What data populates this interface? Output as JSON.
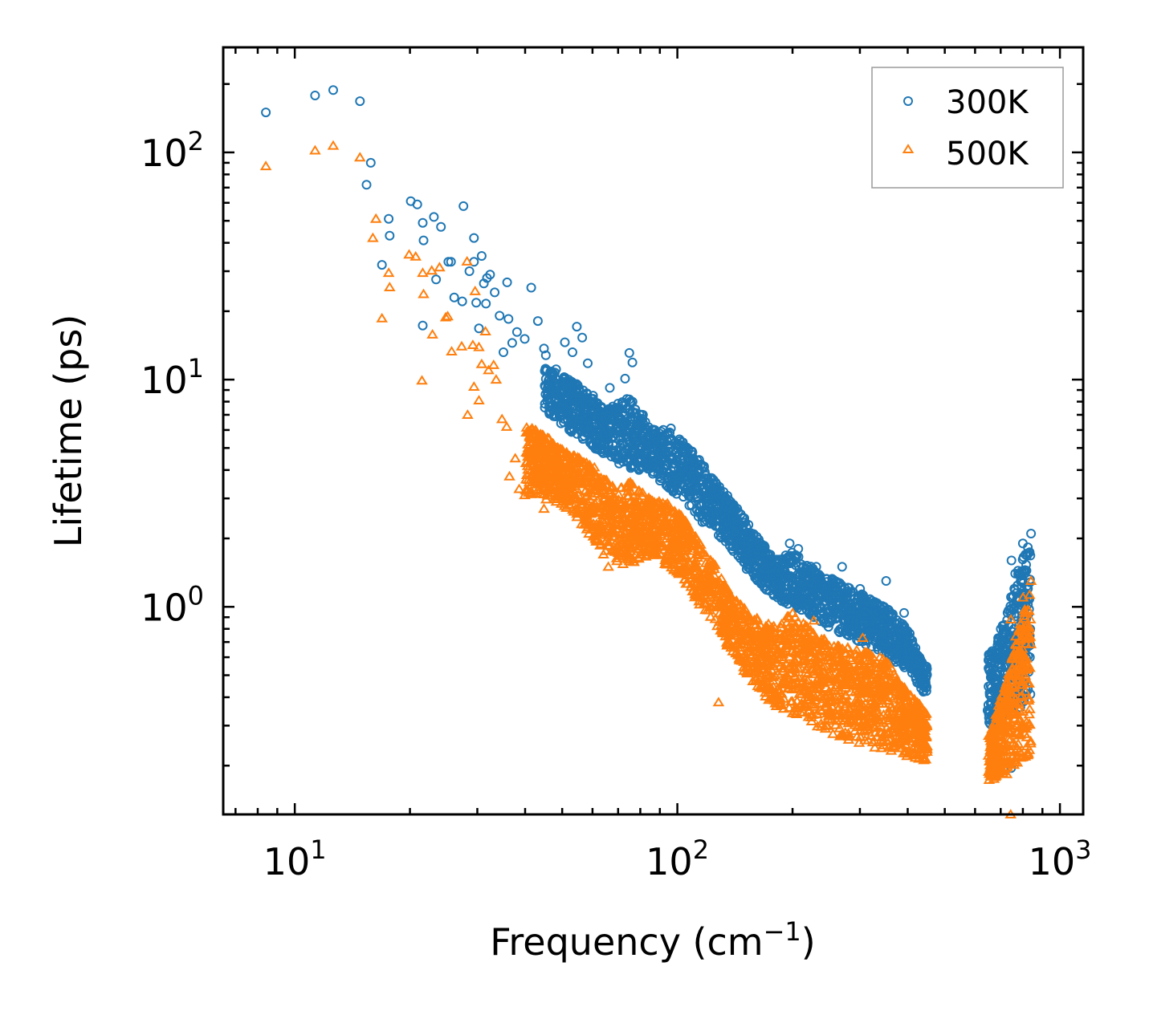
{
  "chart_data": {
    "type": "scatter",
    "xscale": "log",
    "yscale": "log",
    "xlim": [
      6.5,
      1150
    ],
    "ylim": [
      0.122,
      290
    ],
    "xlabel": "Frequency (cm",
    "xlabel_superscript": "−1",
    "xlabel_suffix": ")",
    "ylabel": "Lifetime (ps)",
    "xticks": [
      {
        "value": 10,
        "base": "10",
        "exp": "1"
      },
      {
        "value": 100,
        "base": "10",
        "exp": "2"
      },
      {
        "value": 1000,
        "base": "10",
        "exp": "3"
      }
    ],
    "yticks": [
      {
        "value": 1,
        "base": "10",
        "exp": "0"
      },
      {
        "value": 10,
        "base": "10",
        "exp": "1"
      },
      {
        "value": 100,
        "base": "10",
        "exp": "2"
      }
    ],
    "legend_position": "top-right",
    "series": [
      {
        "name": "300K",
        "marker": "circle",
        "color": "#1f77b4",
        "points": [
          [
            8.4,
            150
          ],
          [
            11.3,
            178
          ],
          [
            12.6,
            188
          ],
          [
            14.8,
            168
          ],
          [
            15.8,
            90
          ],
          [
            15.4,
            72
          ],
          [
            17.6,
            51
          ],
          [
            17.7,
            43
          ],
          [
            16.9,
            32
          ],
          [
            20.1,
            61
          ],
          [
            20.9,
            59
          ],
          [
            21.6,
            49
          ],
          [
            21.7,
            41
          ],
          [
            21.6,
            17.3
          ],
          [
            23.1,
            52
          ],
          [
            24.1,
            47
          ],
          [
            23.4,
            27.6
          ],
          [
            25.2,
            33
          ],
          [
            25.6,
            33
          ],
          [
            27.6,
            58
          ],
          [
            26.1,
            23
          ],
          [
            27.4,
            22.1
          ],
          [
            28.6,
            30
          ],
          [
            29.4,
            42
          ],
          [
            29.4,
            33
          ],
          [
            30.8,
            35
          ],
          [
            31.2,
            26.5
          ],
          [
            32.4,
            29
          ],
          [
            31.8,
            28
          ],
          [
            33.3,
            24.2
          ],
          [
            29.8,
            21.8
          ],
          [
            31.6,
            21.6
          ],
          [
            35.9,
            26.8
          ],
          [
            34.3,
            19.1
          ],
          [
            36.2,
            18.5
          ],
          [
            30.3,
            16.8
          ],
          [
            38.1,
            16.2
          ],
          [
            41.5,
            25.4
          ],
          [
            43.2,
            18.1
          ],
          [
            37.0,
            14.5
          ],
          [
            35.1,
            13.2
          ],
          [
            39.9,
            15.1
          ],
          [
            44.8,
            13.7
          ],
          [
            48.2,
            11.1
          ],
          [
            50.8,
            14.6
          ],
          [
            53.2,
            13.2
          ],
          [
            54.6,
            17.1
          ],
          [
            56.4,
            15.3
          ],
          [
            58.3,
            11.8
          ],
          [
            45.3,
            12.8
          ],
          [
            47.3,
            9.8
          ],
          [
            51.4,
            9.2
          ],
          [
            60.2,
            8.5
          ],
          [
            66.6,
            9.2
          ],
          [
            73.0,
            10.1
          ],
          [
            74.9,
            13.1
          ],
          [
            76.3,
            11.9
          ],
          [
            75.4,
            8.0
          ],
          [
            81.1,
            6.2
          ],
          [
            87.4,
            5.3
          ],
          [
            90.8,
            5.9
          ],
          [
            96.2,
            6.1
          ],
          [
            103.0,
            5.3
          ],
          [
            110.2,
            4.5
          ],
          [
            117.4,
            4.1
          ],
          [
            127.0,
            3.3
          ],
          [
            143.0,
            2.4
          ],
          [
            155.7,
            1.9
          ],
          [
            175.6,
            1.6
          ],
          [
            196.6,
            1.9
          ],
          [
            207.0,
            1.8
          ],
          [
            230.7,
            1.5
          ],
          [
            269.6,
            1.5
          ],
          [
            300.4,
            1.2
          ],
          [
            351.3,
            1.3
          ],
          [
            391.5,
            0.94
          ],
          [
            421.2,
            0.62
          ],
          [
            447.0,
            0.44
          ],
          [
            646.7,
            0.35
          ],
          [
            679.0,
            0.62
          ],
          [
            711.4,
            0.77
          ],
          [
            746.9,
            1.6
          ],
          [
            764.0,
            1.4
          ],
          [
            799.9,
            1.9
          ],
          [
            840.5,
            2.1
          ],
          [
            745.6,
            0.195
          ]
        ],
        "envelope": [
          [
            45,
            11.5,
            7.2
          ],
          [
            55,
            9.5,
            5.6
          ],
          [
            65,
            7.3,
            4.6
          ],
          [
            75,
            8.5,
            4.0
          ],
          [
            85,
            6.3,
            3.9
          ],
          [
            95,
            6.0,
            3.3
          ],
          [
            105,
            5.2,
            2.9
          ],
          [
            115,
            4.4,
            2.4
          ],
          [
            125,
            3.6,
            2.1
          ],
          [
            140,
            2.9,
            1.75
          ],
          [
            160,
            2.1,
            1.3
          ],
          [
            180,
            1.6,
            1.1
          ],
          [
            200,
            1.75,
            1.0
          ],
          [
            230,
            1.45,
            0.88
          ],
          [
            260,
            1.3,
            0.78
          ],
          [
            300,
            1.15,
            0.7
          ],
          [
            350,
            1.0,
            0.62
          ],
          [
            400,
            0.8,
            0.52
          ],
          [
            440,
            0.55,
            0.42
          ],
          [
            660,
            0.62,
            0.3
          ],
          [
            720,
            0.9,
            0.32
          ],
          [
            780,
            1.5,
            0.35
          ],
          [
            840,
            2.0,
            0.4
          ]
        ]
      },
      {
        "name": "500K",
        "marker": "triangle",
        "color": "#ff7f0e",
        "points": [
          [
            8.4,
            87
          ],
          [
            11.3,
            102
          ],
          [
            12.6,
            107
          ],
          [
            14.8,
            95
          ],
          [
            16.3,
            51
          ],
          [
            16.0,
            42
          ],
          [
            17.6,
            29.5
          ],
          [
            17.7,
            25.5
          ],
          [
            16.9,
            18.6
          ],
          [
            19.9,
            35.5
          ],
          [
            20.7,
            34.8
          ],
          [
            21.6,
            29.5
          ],
          [
            21.7,
            23.8
          ],
          [
            21.5,
            9.9
          ],
          [
            22.8,
            30.2
          ],
          [
            23.9,
            31.2
          ],
          [
            22.9,
            15.8
          ],
          [
            24.8,
            18.8
          ],
          [
            25.1,
            19.0
          ],
          [
            25.7,
            13.3
          ],
          [
            27.3,
            14.0
          ],
          [
            28.2,
            33.1
          ],
          [
            28.3,
            7.0
          ],
          [
            29.2,
            14.2
          ],
          [
            29.6,
            24.5
          ],
          [
            30.3,
            13.9
          ],
          [
            30.8,
            11.7
          ],
          [
            31.5,
            16.3
          ],
          [
            32.1,
            11.0
          ],
          [
            33.1,
            11.6
          ],
          [
            33.6,
            10.0
          ],
          [
            30.3,
            8.1
          ],
          [
            29.4,
            9.3
          ],
          [
            34.8,
            6.7
          ],
          [
            35.8,
            6.2
          ],
          [
            36.4,
            3.75
          ],
          [
            37.7,
            4.5
          ],
          [
            38.6,
            3.3
          ],
          [
            39.9,
            3.1
          ],
          [
            41.6,
            5.5
          ],
          [
            43.6,
            4.3
          ],
          [
            46.2,
            5.5
          ],
          [
            48.3,
            3.1
          ],
          [
            44.8,
            2.7
          ],
          [
            51.2,
            3.5
          ],
          [
            55.1,
            3.8
          ],
          [
            60.3,
            2.6
          ],
          [
            64.1,
            1.7
          ],
          [
            66.0,
            1.5
          ],
          [
            70.4,
            2.7
          ],
          [
            72.8,
            2.1
          ],
          [
            77.2,
            2.2
          ],
          [
            80.3,
            2.8
          ],
          [
            88.1,
            2.5
          ],
          [
            92.9,
            2.8
          ],
          [
            100.5,
            2.2
          ],
          [
            106.1,
            1.9
          ],
          [
            113.0,
            1.7
          ],
          [
            123.0,
            1.3
          ],
          [
            128.5,
            1.3
          ],
          [
            133.3,
            0.93
          ],
          [
            128.1,
            0.38
          ],
          [
            141.4,
            0.86
          ],
          [
            154.8,
            0.76
          ],
          [
            163.2,
            0.67
          ],
          [
            177.4,
            0.43
          ],
          [
            196.6,
            0.55
          ],
          [
            219.7,
            0.4
          ],
          [
            227.3,
            0.87
          ],
          [
            247.0,
            0.34
          ],
          [
            256.7,
            0.55
          ],
          [
            277.8,
            0.56
          ],
          [
            305.1,
            0.73
          ],
          [
            345.9,
            0.51
          ],
          [
            370.5,
            0.25
          ],
          [
            397.6,
            0.27
          ],
          [
            423.3,
            0.38
          ],
          [
            441.1,
            0.24
          ],
          [
            659.2,
            0.18
          ],
          [
            690.0,
            0.34
          ],
          [
            711.8,
            0.36
          ],
          [
            744.3,
            0.88
          ],
          [
            766.9,
            0.74
          ],
          [
            800.8,
            1.1
          ],
          [
            840.4,
            1.3
          ],
          [
            743.4,
            0.122
          ],
          [
            661.3,
            0.21
          ]
        ],
        "envelope": [
          [
            40,
            6.5,
            3.2
          ],
          [
            50,
            5.0,
            2.8
          ],
          [
            60,
            4.2,
            2.0
          ],
          [
            70,
            3.3,
            1.55
          ],
          [
            75,
            3.6,
            1.5
          ],
          [
            85,
            3.0,
            1.7
          ],
          [
            95,
            2.9,
            1.5
          ],
          [
            105,
            2.4,
            1.25
          ],
          [
            115,
            1.9,
            1.0
          ],
          [
            125,
            1.55,
            0.85
          ],
          [
            140,
            1.1,
            0.6
          ],
          [
            160,
            0.9,
            0.45
          ],
          [
            180,
            0.82,
            0.36
          ],
          [
            200,
            0.95,
            0.34
          ],
          [
            230,
            0.75,
            0.3
          ],
          [
            260,
            0.68,
            0.27
          ],
          [
            300,
            0.65,
            0.25
          ],
          [
            350,
            0.6,
            0.23
          ],
          [
            400,
            0.42,
            0.22
          ],
          [
            440,
            0.36,
            0.21
          ],
          [
            660,
            0.3,
            0.17
          ],
          [
            720,
            0.45,
            0.18
          ],
          [
            780,
            0.8,
            0.2
          ],
          [
            840,
            1.2,
            0.22
          ]
        ]
      }
    ]
  }
}
